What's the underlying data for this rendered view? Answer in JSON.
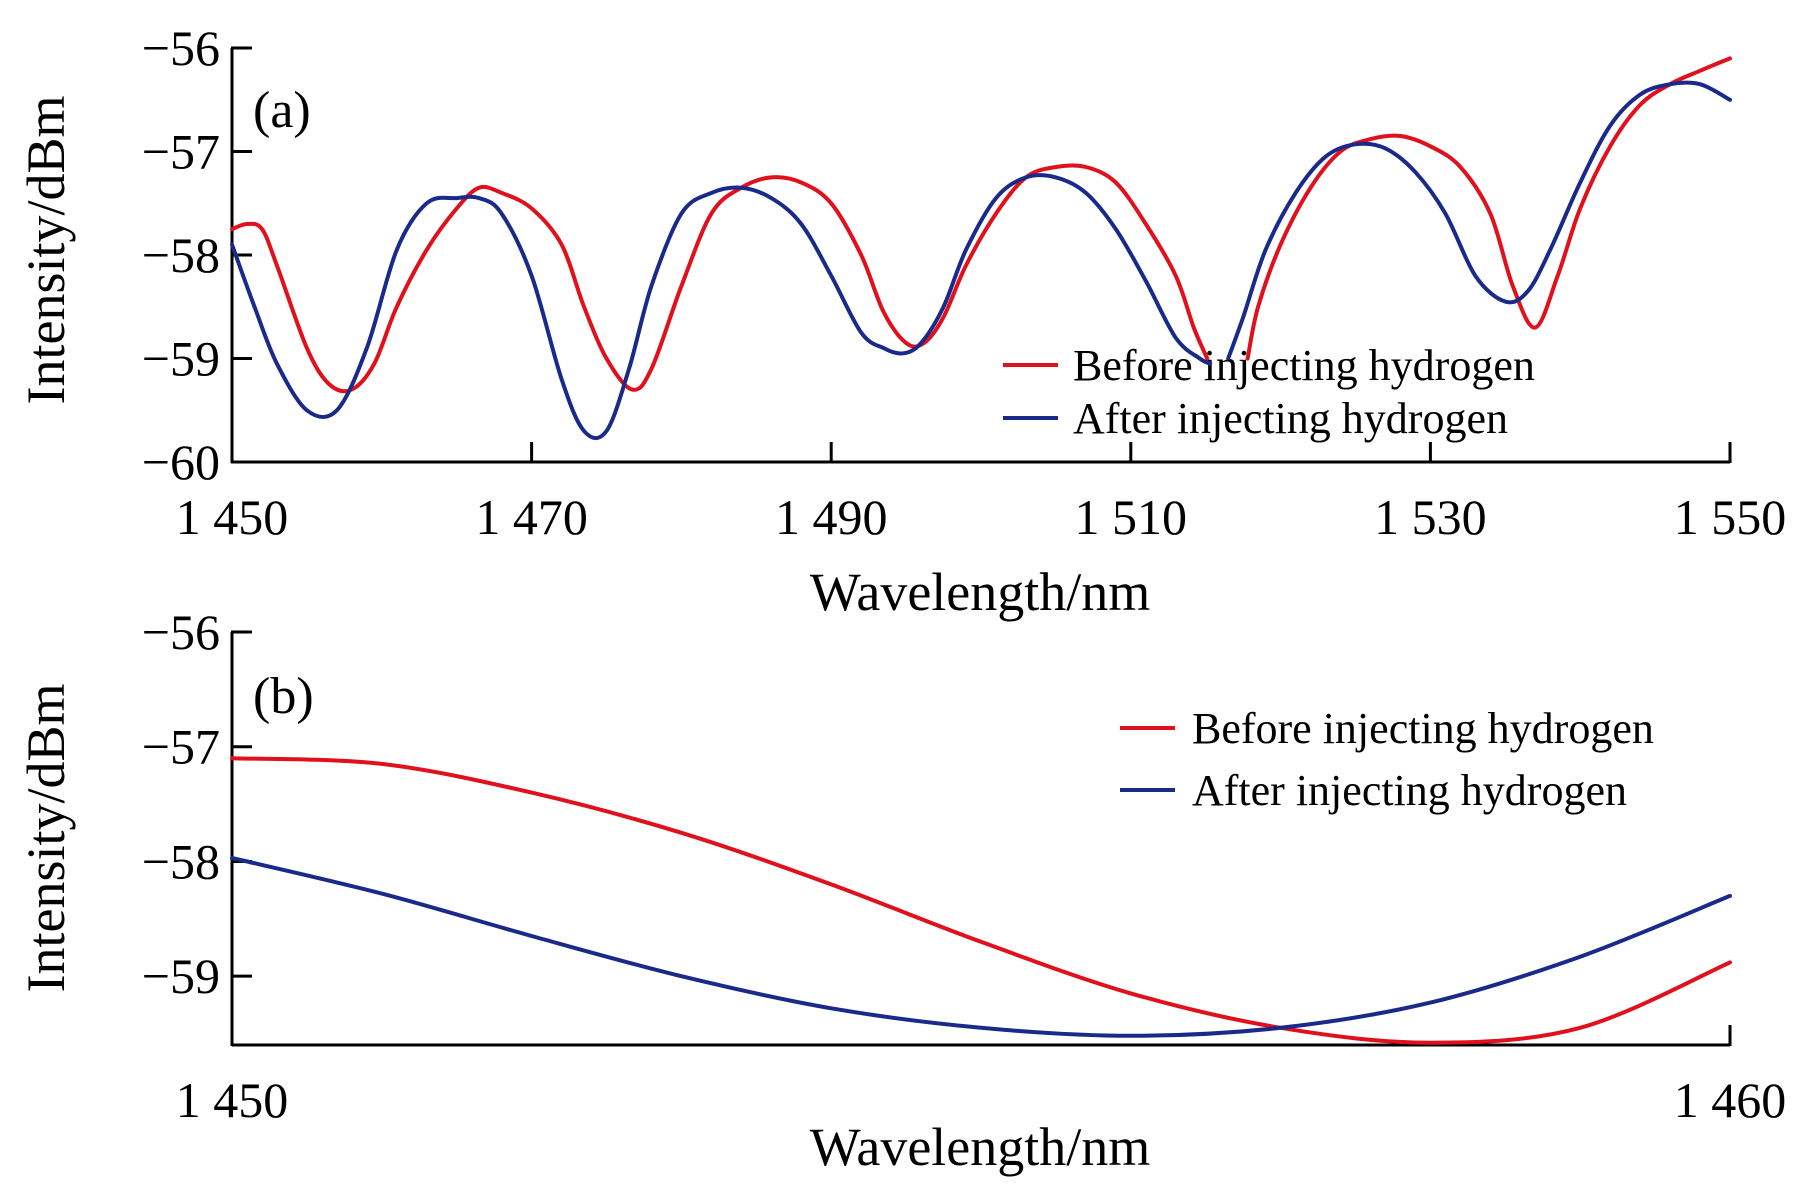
{
  "colors": {
    "before": "#e0101c",
    "after": "#1a2a8a"
  },
  "chart_data": [
    {
      "type": "line",
      "panel_label": "(a)",
      "title": "",
      "xlabel": "Wavelength/nm",
      "ylabel": "Intensity/dBm",
      "xlim": [
        1450,
        1550
      ],
      "ylim": [
        -60,
        -56
      ],
      "xticks": [
        1450,
        1470,
        1490,
        1510,
        1530,
        1550
      ],
      "xtick_labels": [
        "1 450",
        "1 470",
        "1 490",
        "1 510",
        "1 530",
        "1 550"
      ],
      "yticks": [
        -56,
        -57,
        -58,
        -59,
        -60
      ],
      "ytick_labels": [
        "−56",
        "−57",
        "−58",
        "−59",
        "−60"
      ],
      "grid": false,
      "legend": "bottom-right",
      "series": [
        {
          "name": "Before injecting hydrogen",
          "color_key": "before",
          "x": [
            1450,
            1451,
            1452,
            1453,
            1455,
            1456.5,
            1458,
            1459.5,
            1461,
            1463,
            1465,
            1466.5,
            1468,
            1470,
            1472,
            1473.5,
            1475,
            1476.7,
            1478,
            1480,
            1482,
            1484,
            1486,
            1488,
            1490,
            1492,
            1493.5,
            1495,
            1496.2,
            1497.5,
            1499,
            1501,
            1503,
            1505,
            1507,
            1509,
            1511,
            1513,
            1514.2,
            1515.1
          ],
          "y": [
            -57.75,
            -57.7,
            -57.75,
            -58.1,
            -58.9,
            -59.25,
            -59.3,
            -59.05,
            -58.5,
            -57.95,
            -57.55,
            -57.35,
            -57.4,
            -57.55,
            -57.9,
            -58.5,
            -59.0,
            -59.3,
            -59.1,
            -58.3,
            -57.6,
            -57.35,
            -57.25,
            -57.3,
            -57.5,
            -58.0,
            -58.55,
            -58.85,
            -58.85,
            -58.6,
            -58.1,
            -57.6,
            -57.25,
            -57.15,
            -57.15,
            -57.3,
            -57.7,
            -58.2,
            -58.7,
            -59.0
          ],
          "x2": [
            1517.8,
            1518.5,
            1520,
            1522,
            1524,
            1526,
            1528,
            1530,
            1532,
            1534,
            1535.5,
            1537,
            1538.5,
            1540,
            1542,
            1544,
            1546,
            1548,
            1550
          ],
          "y2": [
            -59.0,
            -58.5,
            -57.9,
            -57.35,
            -57.0,
            -56.88,
            -56.85,
            -56.95,
            -57.15,
            -57.6,
            -58.3,
            -58.7,
            -58.2,
            -57.55,
            -56.95,
            -56.55,
            -56.35,
            -56.22,
            -56.1
          ]
        },
        {
          "name": "After injecting hydrogen",
          "color_key": "after",
          "x": [
            1450,
            1451.5,
            1453,
            1455,
            1457,
            1459,
            1461,
            1463,
            1465,
            1466.5,
            1468,
            1470,
            1472,
            1473.5,
            1475,
            1476.5,
            1478,
            1480,
            1482,
            1484,
            1486,
            1488,
            1490,
            1492,
            1493.5,
            1494.8,
            1496,
            1497.5,
            1499,
            1501,
            1503,
            1505,
            1507,
            1509,
            1511,
            1513,
            1514.6,
            1515.3
          ],
          "y": [
            -57.9,
            -58.5,
            -59.05,
            -59.5,
            -59.5,
            -58.9,
            -57.95,
            -57.5,
            -57.45,
            -57.45,
            -57.6,
            -58.2,
            -59.2,
            -59.7,
            -59.7,
            -59.1,
            -58.3,
            -57.6,
            -57.4,
            -57.35,
            -57.45,
            -57.7,
            -58.2,
            -58.75,
            -58.9,
            -58.95,
            -58.85,
            -58.5,
            -57.95,
            -57.45,
            -57.25,
            -57.25,
            -57.4,
            -57.75,
            -58.25,
            -58.8,
            -59.0,
            -59.05
          ],
          "x2": [
            1516.5,
            1517.5,
            1519,
            1521,
            1523,
            1525,
            1527,
            1529,
            1531,
            1533,
            1535,
            1536.5,
            1538,
            1540,
            1542,
            1544,
            1546,
            1548,
            1550
          ],
          "y2": [
            -59.0,
            -58.6,
            -57.95,
            -57.4,
            -57.05,
            -56.93,
            -56.97,
            -57.2,
            -57.6,
            -58.2,
            -58.45,
            -58.35,
            -57.95,
            -57.3,
            -56.75,
            -56.45,
            -56.35,
            -56.35,
            -56.5
          ]
        }
      ]
    },
    {
      "type": "line",
      "panel_label": "(b)",
      "title": "",
      "xlabel": "Wavelength/nm",
      "ylabel": "Intensity/dBm",
      "xlim": [
        1450,
        1460
      ],
      "ylim": [
        -59.6,
        -56
      ],
      "xticks": [
        1450,
        1460
      ],
      "xtick_labels": [
        "1 450",
        "1 460"
      ],
      "yticks": [
        -56,
        -57,
        -58,
        -59
      ],
      "ytick_labels": [
        "−56",
        "−57",
        "−58",
        "−59"
      ],
      "grid": false,
      "legend": "top-right",
      "series": [
        {
          "name": "Before injecting hydrogen",
          "color_key": "before",
          "x": [
            1450,
            1451,
            1452,
            1453,
            1454,
            1455,
            1456,
            1457,
            1458,
            1459,
            1460
          ],
          "y": [
            -57.1,
            -57.15,
            -57.4,
            -57.75,
            -58.2,
            -58.7,
            -59.15,
            -59.45,
            -59.58,
            -59.45,
            -58.88
          ]
        },
        {
          "name": "After injecting hydrogen",
          "color_key": "after",
          "x": [
            1450,
            1451,
            1452,
            1453,
            1454,
            1455,
            1456,
            1457,
            1458,
            1459,
            1460
          ],
          "y": [
            -57.97,
            -58.28,
            -58.65,
            -59.0,
            -59.28,
            -59.45,
            -59.52,
            -59.45,
            -59.23,
            -58.83,
            -58.3
          ]
        }
      ]
    }
  ]
}
